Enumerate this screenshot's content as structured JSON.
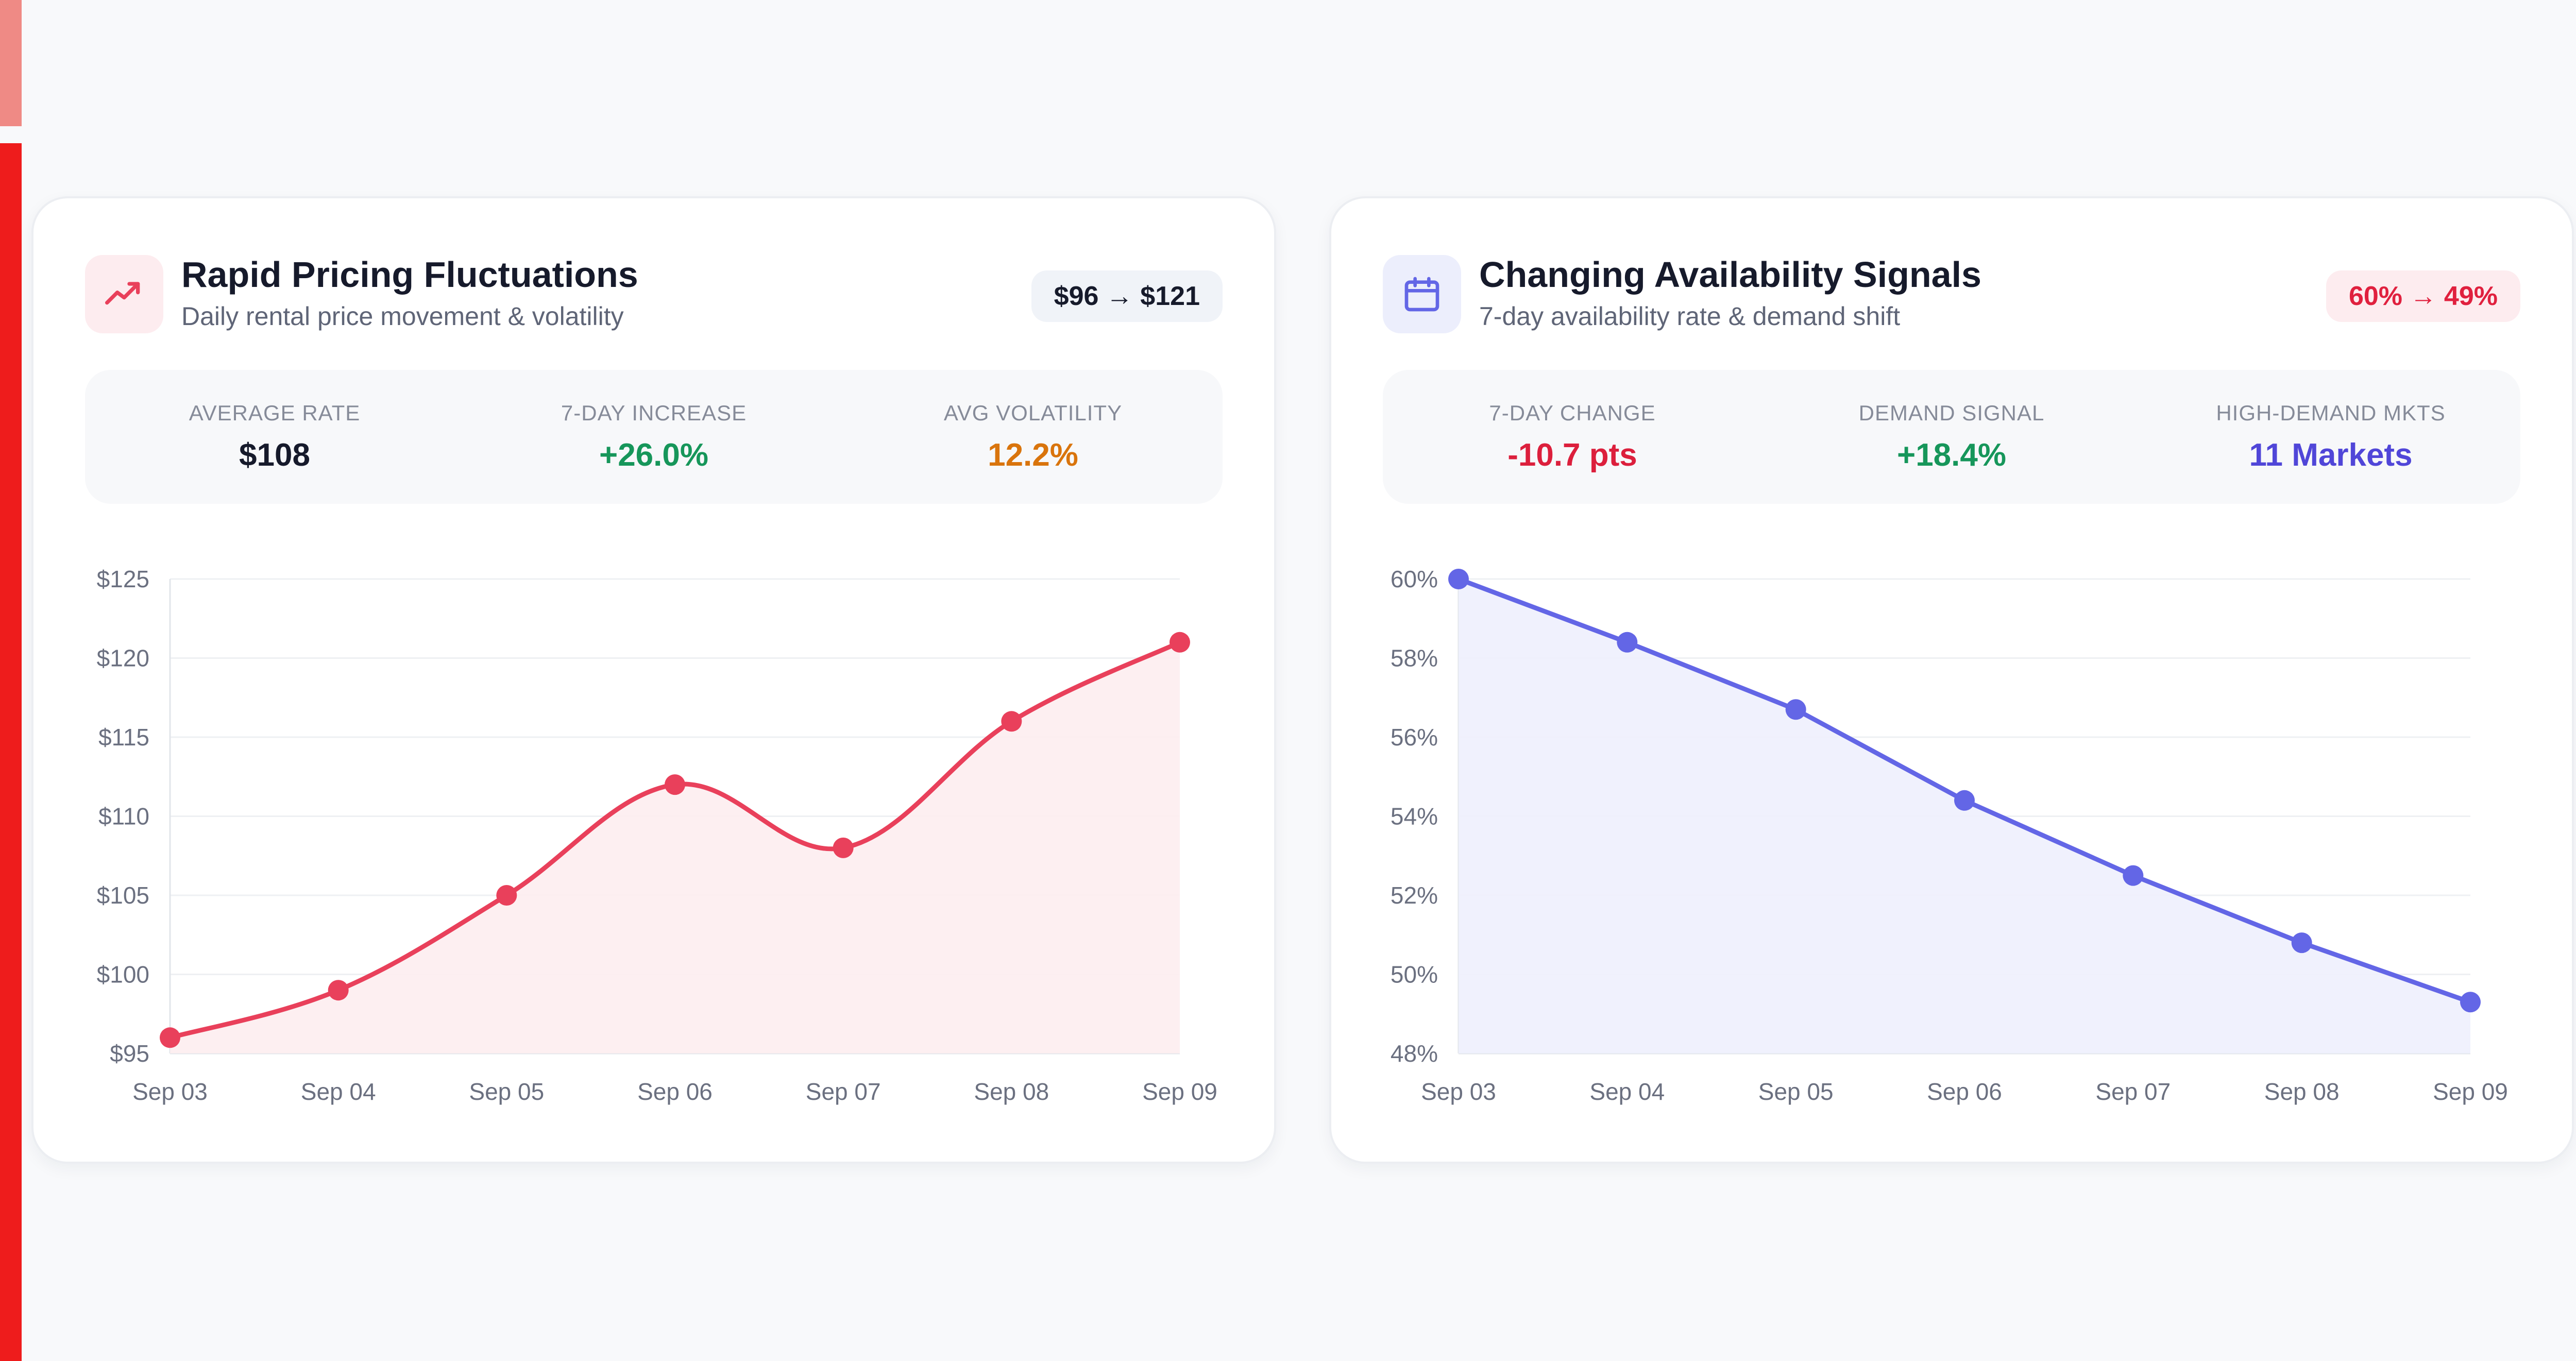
{
  "colors": {
    "pricing_line": "#e9405b",
    "pricing_fill": "#fdedf0",
    "availability_line": "#6366e6",
    "availability_fill": "#eeeffd",
    "green": "#16965a",
    "orange": "#d9740c",
    "red": "#dc1f3c",
    "indigo": "#5046d8",
    "dark": "#161a2b"
  },
  "pricing": {
    "icon": "trending-up-icon",
    "title": "Rapid Pricing Fluctuations",
    "subtitle": "Daily rental price movement & volatility",
    "badge": "$96 → $121",
    "stats": [
      {
        "label": "AVERAGE RATE",
        "value": "$108",
        "tone": "dark"
      },
      {
        "label": "7-DAY INCREASE",
        "value": "+26.0%",
        "tone": "green"
      },
      {
        "label": "AVG VOLATILITY",
        "value": "12.2%",
        "tone": "orange"
      }
    ]
  },
  "availability": {
    "icon": "calendar-icon",
    "title": "Changing Availability Signals",
    "subtitle": "7-day availability rate & demand shift",
    "badge": "60% → 49%",
    "stats": [
      {
        "label": "7-DAY CHANGE",
        "value": "-10.7 pts",
        "tone": "red"
      },
      {
        "label": "DEMAND SIGNAL",
        "value": "+18.4%",
        "tone": "green"
      },
      {
        "label": "HIGH-DEMAND MKTS",
        "value": "11 Markets",
        "tone": "indigo"
      }
    ]
  },
  "chart_data": [
    {
      "type": "area",
      "categories": [
        "Sep 03",
        "Sep 04",
        "Sep 05",
        "Sep 06",
        "Sep 07",
        "Sep 08",
        "Sep 09"
      ],
      "series": [
        {
          "values": [
            96,
            99,
            105,
            112,
            108,
            116,
            121
          ]
        }
      ],
      "ylim": [
        95,
        125
      ],
      "yticks": [
        95,
        100,
        105,
        110,
        115,
        120,
        125
      ],
      "ytick_labels": [
        "$95",
        "$100",
        "$105",
        "$110",
        "$115",
        "$120",
        "$125"
      ],
      "smooth": true,
      "grid": true
    },
    {
      "type": "area",
      "categories": [
        "Sep 03",
        "Sep 04",
        "Sep 05",
        "Sep 06",
        "Sep 07",
        "Sep 08",
        "Sep 09"
      ],
      "series": [
        {
          "values": [
            60,
            58.4,
            56.7,
            54.4,
            52.5,
            50.8,
            49.3
          ]
        }
      ],
      "ylim": [
        48,
        60
      ],
      "yticks": [
        48,
        50,
        52,
        54,
        56,
        58,
        60
      ],
      "ytick_labels": [
        "48%",
        "50%",
        "52%",
        "54%",
        "56%",
        "58%",
        "60%"
      ],
      "smooth": false,
      "grid": true
    }
  ]
}
